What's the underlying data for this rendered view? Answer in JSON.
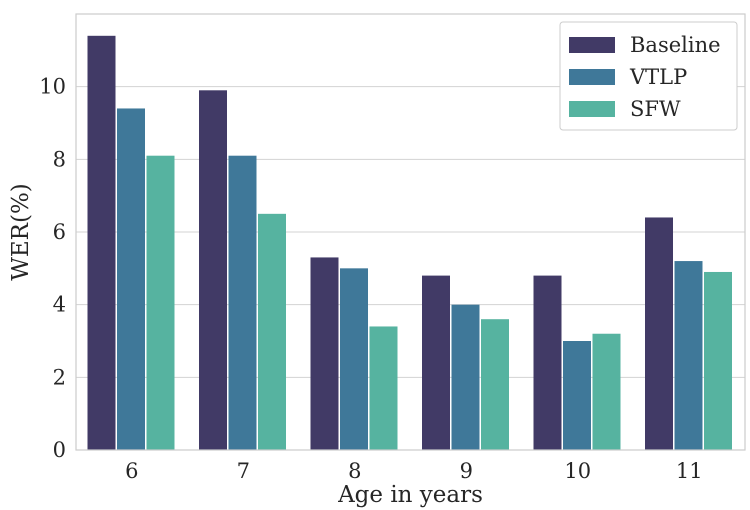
{
  "chart_data": {
    "type": "bar",
    "title": "",
    "xlabel": "Age in years",
    "ylabel": "WER(%)",
    "categories": [
      "6",
      "7",
      "8",
      "9",
      "10",
      "11"
    ],
    "ylim": [
      0,
      12
    ],
    "yticks": [
      "0",
      "2",
      "4",
      "6",
      "8",
      "10"
    ],
    "grid": "horizontal",
    "legend_position": "top-right",
    "series": [
      {
        "name": "Baseline",
        "color": "#413a66",
        "values": [
          11.4,
          9.9,
          5.3,
          4.8,
          4.8,
          6.4
        ]
      },
      {
        "name": "VTLP",
        "color": "#3f7899",
        "values": [
          9.4,
          8.1,
          5.0,
          4.0,
          3.0,
          5.2
        ]
      },
      {
        "name": "SFW",
        "color": "#56b3a0",
        "values": [
          8.1,
          6.5,
          3.4,
          3.6,
          3.2,
          4.9
        ]
      }
    ]
  }
}
